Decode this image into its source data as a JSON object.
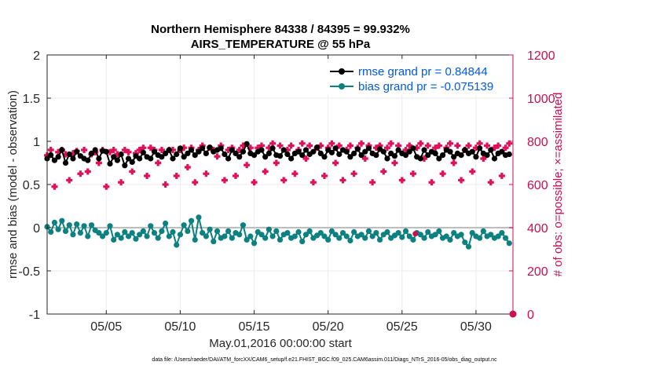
{
  "chart_data": {
    "type": "line",
    "title_line1": "Northern Hemisphere 84338 / 84395 = 99.932%",
    "title_line2": "AIRS_TEMPERATURE @ 55 hPa",
    "xlabel": "May.01,2016 00:00:00 start",
    "ylabel_left": "rmse and bias (model - observation)",
    "ylabel_right": "# of obs: o=possible; ×=assimilated",
    "footnote": "data file: /Users/raeder/DAI/ATM_forcXX/CAM6_setup/f.e21.FHIST_BGC.f09_025.CAM6assim.011/Diags_NTrS_2016-05/obs_diag_output.nc",
    "xlim": [
      1,
      32.5
    ],
    "ylim_left": [
      -1,
      2
    ],
    "ylim_right": [
      0,
      1200
    ],
    "x_ticks": [
      5,
      10,
      15,
      20,
      25,
      30
    ],
    "x_tick_labels": [
      "05/05",
      "05/10",
      "05/15",
      "05/20",
      "05/25",
      "05/30"
    ],
    "y_left_ticks": [
      -1,
      -0.5,
      0,
      0.5,
      1,
      1.5,
      2
    ],
    "y_left_tick_labels": [
      "-1",
      "-0.5",
      "0",
      "0.5",
      "1",
      "1.5",
      "2"
    ],
    "y_right_ticks": [
      0,
      200,
      400,
      600,
      800,
      1000,
      1200
    ],
    "y_right_tick_labels": [
      "0",
      "200",
      "400",
      "600",
      "800",
      "1000",
      "1200"
    ],
    "grid": true,
    "legend_position": "top-right",
    "series": [
      {
        "name": "rmse grand pr = 0.84844",
        "axis": "left",
        "style": "line-dot",
        "color": "#000000",
        "x_start": 1.0,
        "x_step": 0.25,
        "values": [
          0.8,
          0.84,
          0.78,
          0.82,
          0.9,
          0.75,
          0.85,
          0.8,
          0.88,
          0.83,
          0.8,
          0.78,
          0.86,
          0.9,
          0.8,
          0.89,
          0.88,
          0.74,
          0.82,
          0.78,
          0.85,
          0.72,
          0.8,
          0.76,
          0.83,
          0.8,
          0.87,
          0.82,
          0.8,
          0.88,
          0.84,
          0.82,
          0.86,
          0.9,
          0.8,
          0.85,
          0.92,
          0.82,
          0.86,
          0.9,
          0.84,
          0.88,
          0.92,
          0.86,
          0.93,
          0.88,
          0.9,
          0.92,
          0.85,
          0.8,
          0.9,
          0.86,
          0.82,
          0.88,
          0.97,
          0.86,
          0.84,
          0.88,
          0.9,
          0.82,
          0.86,
          0.92,
          0.84,
          0.83,
          0.9,
          0.85,
          0.8,
          0.86,
          0.88,
          0.84,
          0.9,
          0.85,
          0.88,
          0.93,
          0.86,
          0.82,
          0.9,
          0.87,
          0.92,
          0.85,
          0.9,
          0.88,
          0.82,
          0.86,
          0.91,
          0.84,
          0.88,
          0.92,
          0.86,
          0.84,
          0.91,
          0.88,
          0.8,
          0.86,
          0.83,
          0.9,
          0.86,
          0.84,
          0.88,
          0.92,
          0.82,
          0.8,
          0.9,
          0.84,
          0.88,
          0.86,
          0.8,
          0.84,
          0.9,
          0.88,
          0.82,
          0.86,
          0.84,
          0.9,
          0.86,
          0.88,
          0.82,
          0.92,
          0.86,
          0.84,
          0.9,
          0.8,
          0.86,
          0.88,
          0.84,
          0.85
        ]
      },
      {
        "name": "bias grand pr = -0.075139",
        "axis": "left",
        "style": "line-dot",
        "color": "#0d8080",
        "x_start": 1.0,
        "x_step": 0.25,
        "values": [
          0.01,
          -0.05,
          0.06,
          -0.02,
          0.08,
          -0.04,
          0.03,
          -0.08,
          0.04,
          -0.06,
          0.02,
          -0.1,
          0.03,
          -0.03,
          -0.06,
          -0.1,
          -0.06,
          0.02,
          -0.14,
          -0.08,
          -0.12,
          -0.05,
          -0.1,
          -0.06,
          -0.13,
          -0.08,
          -0.04,
          -0.1,
          0.02,
          -0.06,
          -0.12,
          -0.04,
          0.05,
          -0.1,
          -0.05,
          -0.2,
          -0.08,
          0.03,
          -0.04,
          0.08,
          -0.14,
          0.12,
          -0.06,
          -0.1,
          -0.02,
          -0.16,
          -0.04,
          -0.12,
          -0.1,
          -0.04,
          -0.12,
          -0.06,
          -0.08,
          0.03,
          -0.14,
          -0.1,
          -0.18,
          -0.05,
          -0.08,
          -0.12,
          -0.02,
          -0.1,
          -0.04,
          -0.14,
          -0.08,
          -0.06,
          -0.12,
          -0.1,
          -0.05,
          -0.16,
          -0.08,
          -0.04,
          -0.12,
          -0.09,
          -0.06,
          -0.1,
          -0.14,
          -0.04,
          -0.08,
          -0.12,
          -0.06,
          -0.1,
          -0.15,
          -0.05,
          -0.1,
          -0.08,
          -0.12,
          -0.04,
          -0.1,
          -0.06,
          -0.14,
          -0.08,
          -0.05,
          -0.12,
          -0.09,
          -0.06,
          -0.11,
          -0.04,
          -0.1,
          -0.14,
          -0.06,
          -0.08,
          -0.12,
          -0.05,
          -0.1,
          -0.08,
          -0.04,
          -0.12,
          -0.1,
          -0.14,
          -0.06,
          -0.1,
          -0.08,
          -0.17,
          -0.22,
          -0.06,
          -0.1,
          -0.12,
          -0.04,
          -0.1,
          -0.08,
          -0.12,
          -0.1,
          -0.06,
          -0.12,
          -0.18
        ]
      },
      {
        "name": "possible",
        "axis": "right",
        "style": "marker-o",
        "color": "#cc0f4d",
        "x": [
          32.5
        ],
        "values": [
          0
        ]
      },
      {
        "name": "assimilated",
        "axis": "right",
        "style": "marker-x",
        "color": "#e0105a",
        "x_start": 1.0,
        "x_step": 0.25,
        "values": [
          735,
          760,
          590,
          750,
          760,
          740,
          620,
          745,
          755,
          650,
          760,
          660,
          740,
          750,
          700,
          760,
          590,
          750,
          760,
          740,
          610,
          760,
          750,
          660,
          745,
          760,
          770,
          640,
          770,
          760,
          700,
          760,
          600,
          760,
          760,
          640,
          760,
          770,
          680,
          770,
          610,
          760,
          780,
          650,
          770,
          760,
          730,
          780,
          620,
          760,
          770,
          640,
          760,
          780,
          690,
          770,
          610,
          770,
          780,
          660,
          770,
          790,
          700,
          780,
          620,
          760,
          780,
          650,
          760,
          790,
          720,
          780,
          610,
          770,
          780,
          640,
          770,
          790,
          700,
          780,
          620,
          760,
          780,
          650,
          770,
          790,
          720,
          780,
          610,
          770,
          780,
          660,
          770,
          790,
          700,
          780,
          620,
          760,
          780,
          650,
          770,
          790,
          720,
          780,
          610,
          770,
          780,
          650,
          770,
          790,
          700,
          780,
          620,
          760,
          780,
          660,
          770,
          790,
          720,
          780,
          610,
          770,
          780,
          640,
          770,
          790
        ]
      }
    ]
  }
}
